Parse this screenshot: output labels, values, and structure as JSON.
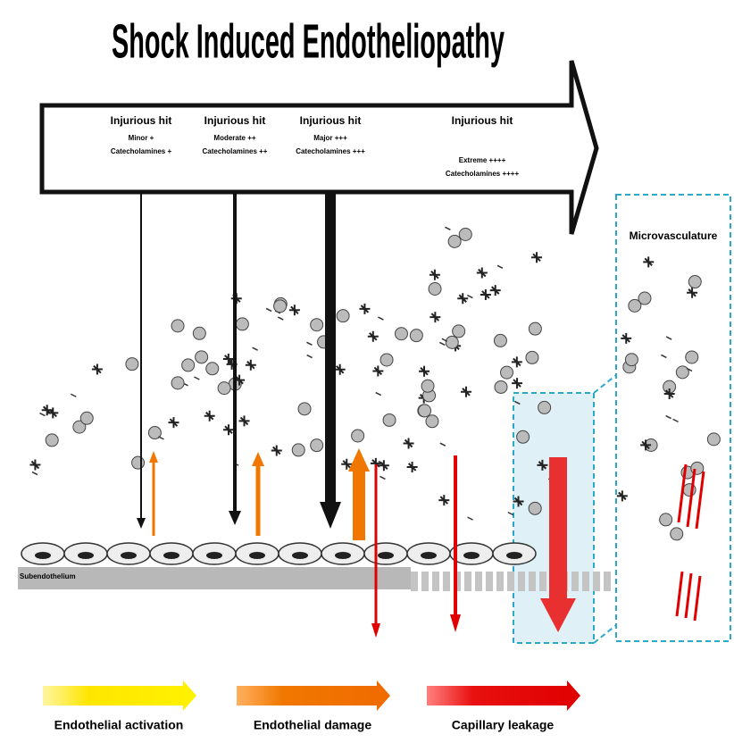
{
  "title": "Shock Induced Endotheliopathy",
  "hits": [
    {
      "title": "Injurious hit",
      "severity": "Minor +",
      "catecholamines": "Catecholamines +"
    },
    {
      "title": "Injurious hit",
      "severity": "Moderate ++",
      "catecholamines": "Catecholamines ++"
    },
    {
      "title": "Injurious hit",
      "severity": "Major +++",
      "catecholamines": "Catecholamines +++"
    },
    {
      "title": "Injurious hit",
      "severity": "Extreme ++++",
      "catecholamines": "Catecholamines ++++"
    }
  ],
  "microvasculature": "Microvasculature",
  "subendothelium": "Subendothelium",
  "stages": [
    {
      "label": "Endothelial activation"
    },
    {
      "label": "Endothelial damage"
    },
    {
      "label": "Capillary leakage"
    }
  ]
}
